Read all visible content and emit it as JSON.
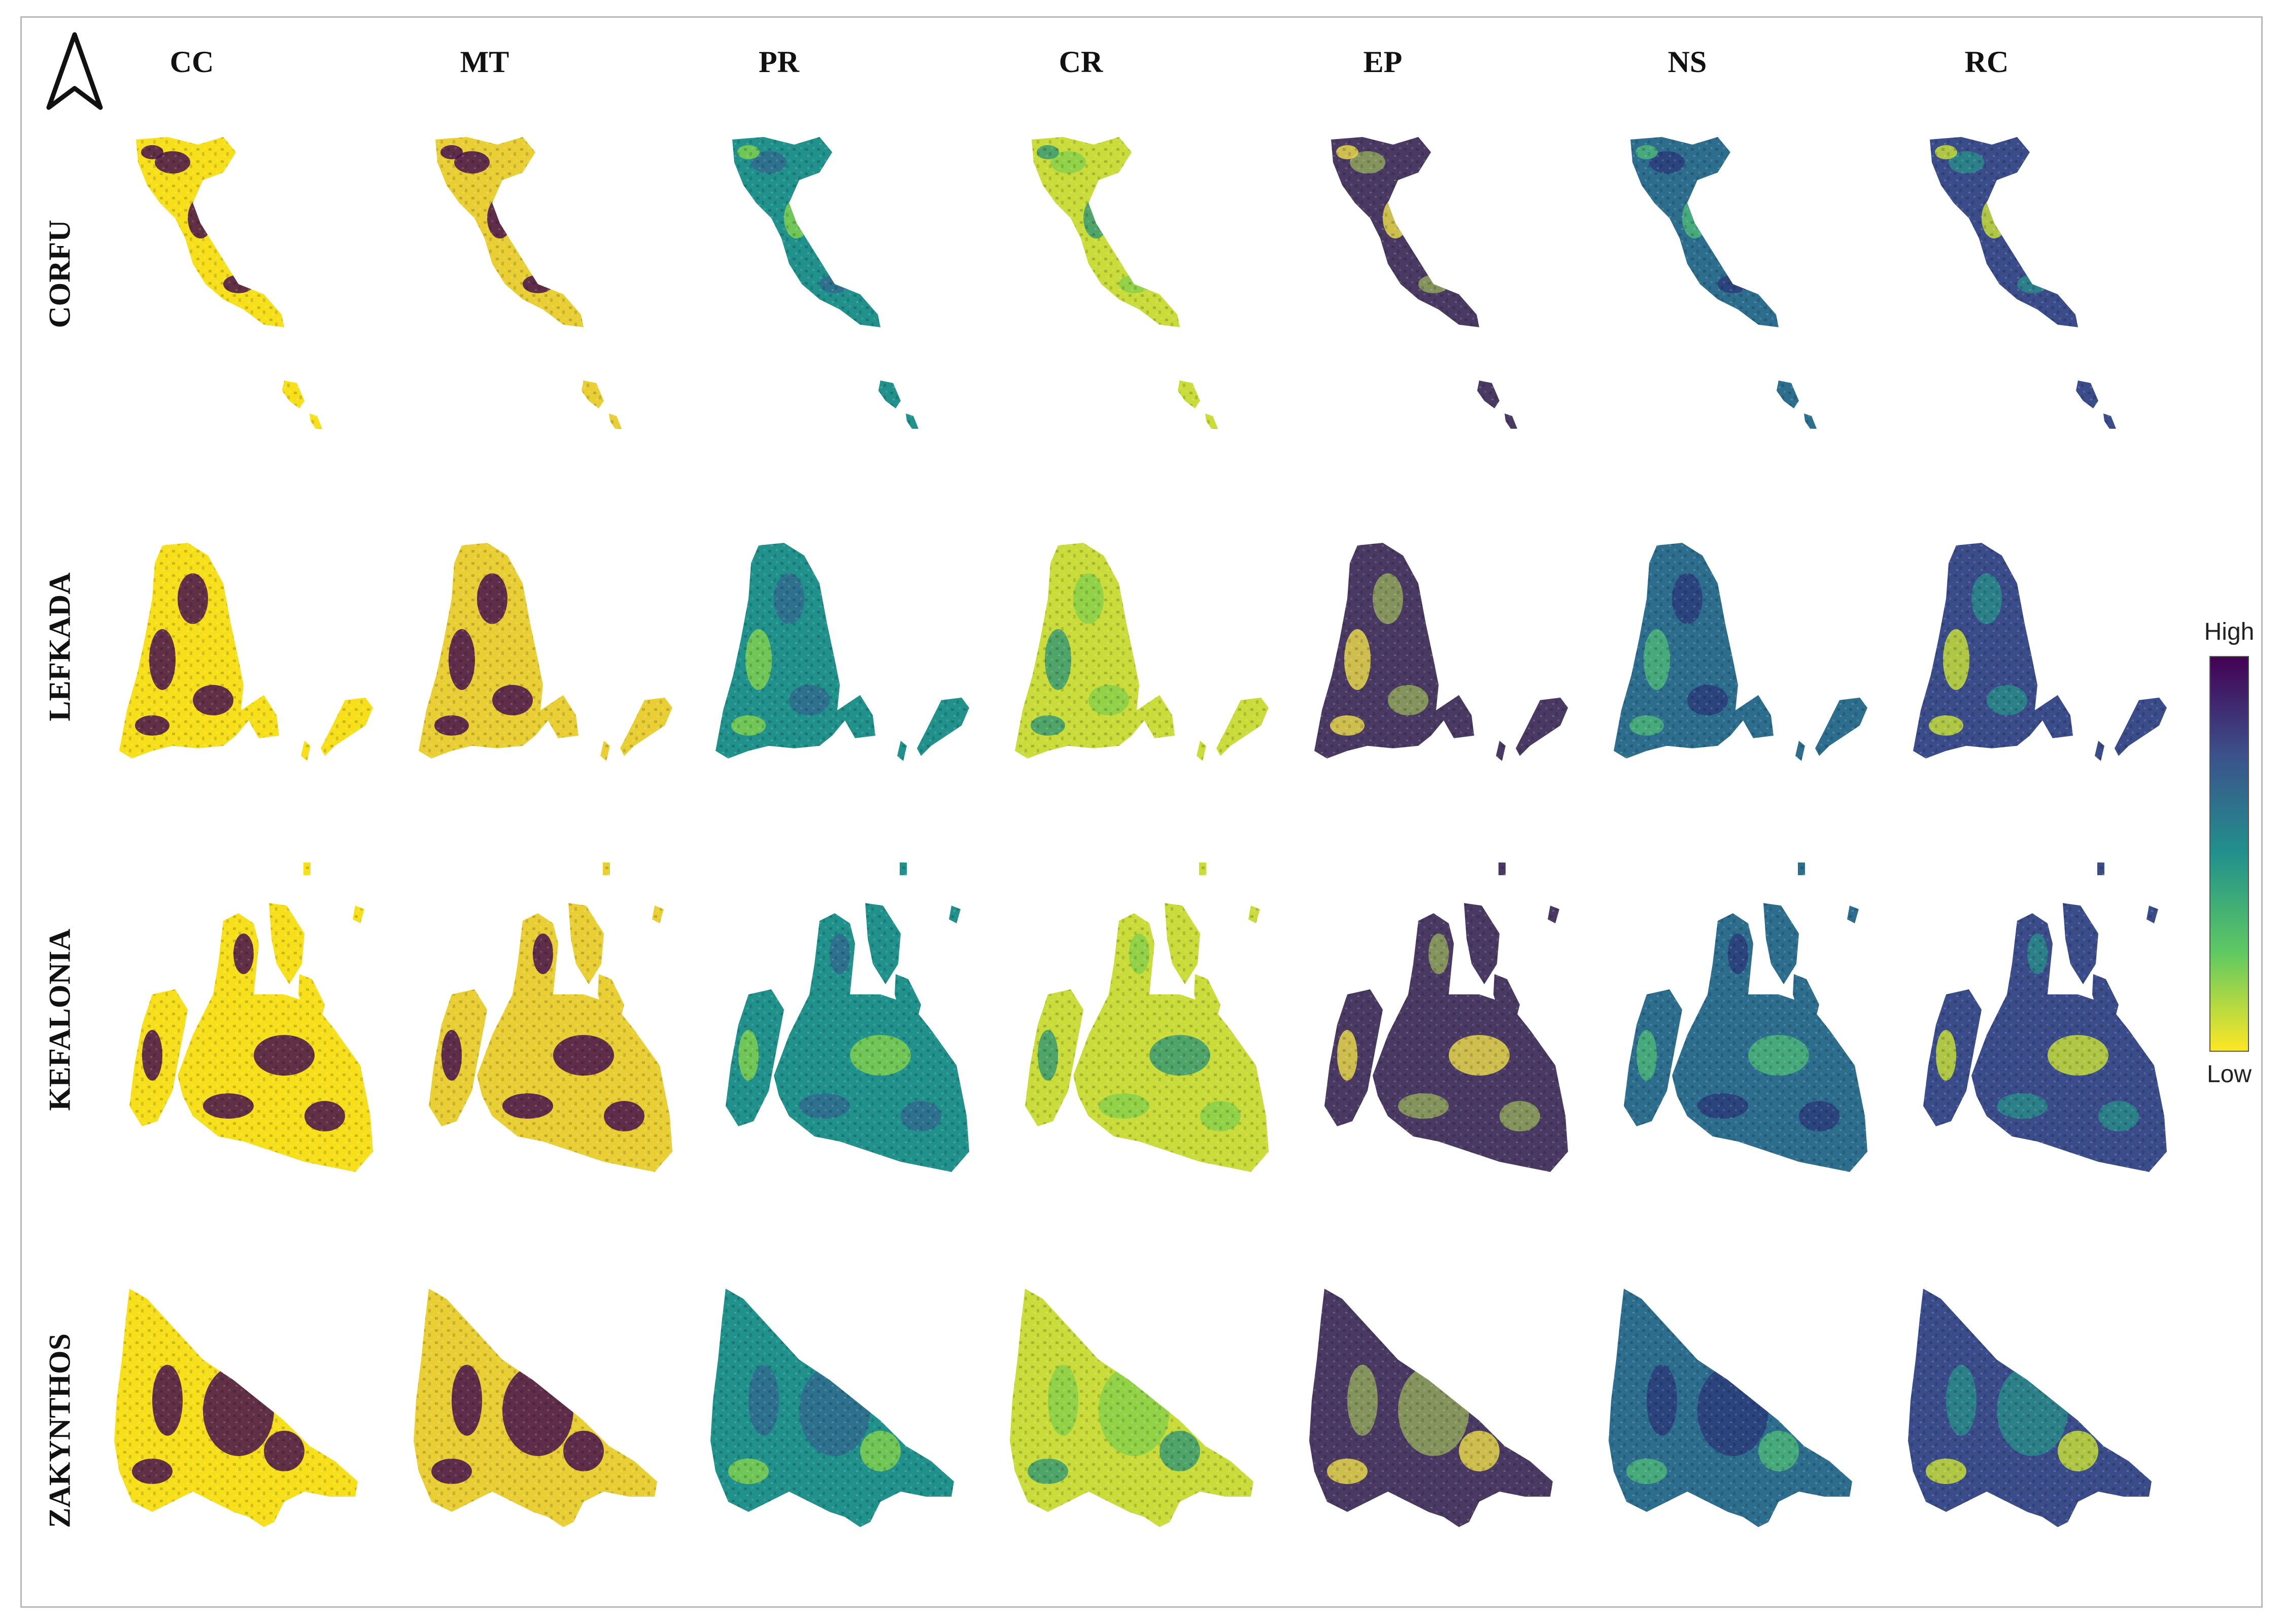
{
  "column_headers": [
    "CC",
    "MT",
    "PR",
    "CR",
    "EP",
    "NS",
    "RC"
  ],
  "row_labels": [
    "CORFU",
    "LEFKADA",
    "KEFALONIA",
    "ZAKYNTHOS"
  ],
  "legend": {
    "high_label": "High",
    "low_label": "Low",
    "colors": [
      "#440154",
      "#3b528b",
      "#21918c",
      "#5ec962",
      "#fde725"
    ]
  },
  "north_arrow_icon": "north-arrow-icon",
  "colors": {
    "CC": [
      "#f7e01a",
      "#46104f"
    ],
    "MT": [
      "#e9cf33",
      "#46104f"
    ],
    "PR": [
      "#21918c",
      "#2f6b8e",
      "#7ecf4e"
    ],
    "CR": [
      "#c9dc3a",
      "#88d04a",
      "#3a9a72"
    ],
    "EP": [
      "#4a3a63",
      "#8fa45a",
      "#e4d64a"
    ],
    "NS": [
      "#2d6e8e",
      "#2c3d7a",
      "#4bb57a"
    ],
    "RC": [
      "#3a4c8a",
      "#2a8a8a",
      "#c6dd3a"
    ]
  }
}
